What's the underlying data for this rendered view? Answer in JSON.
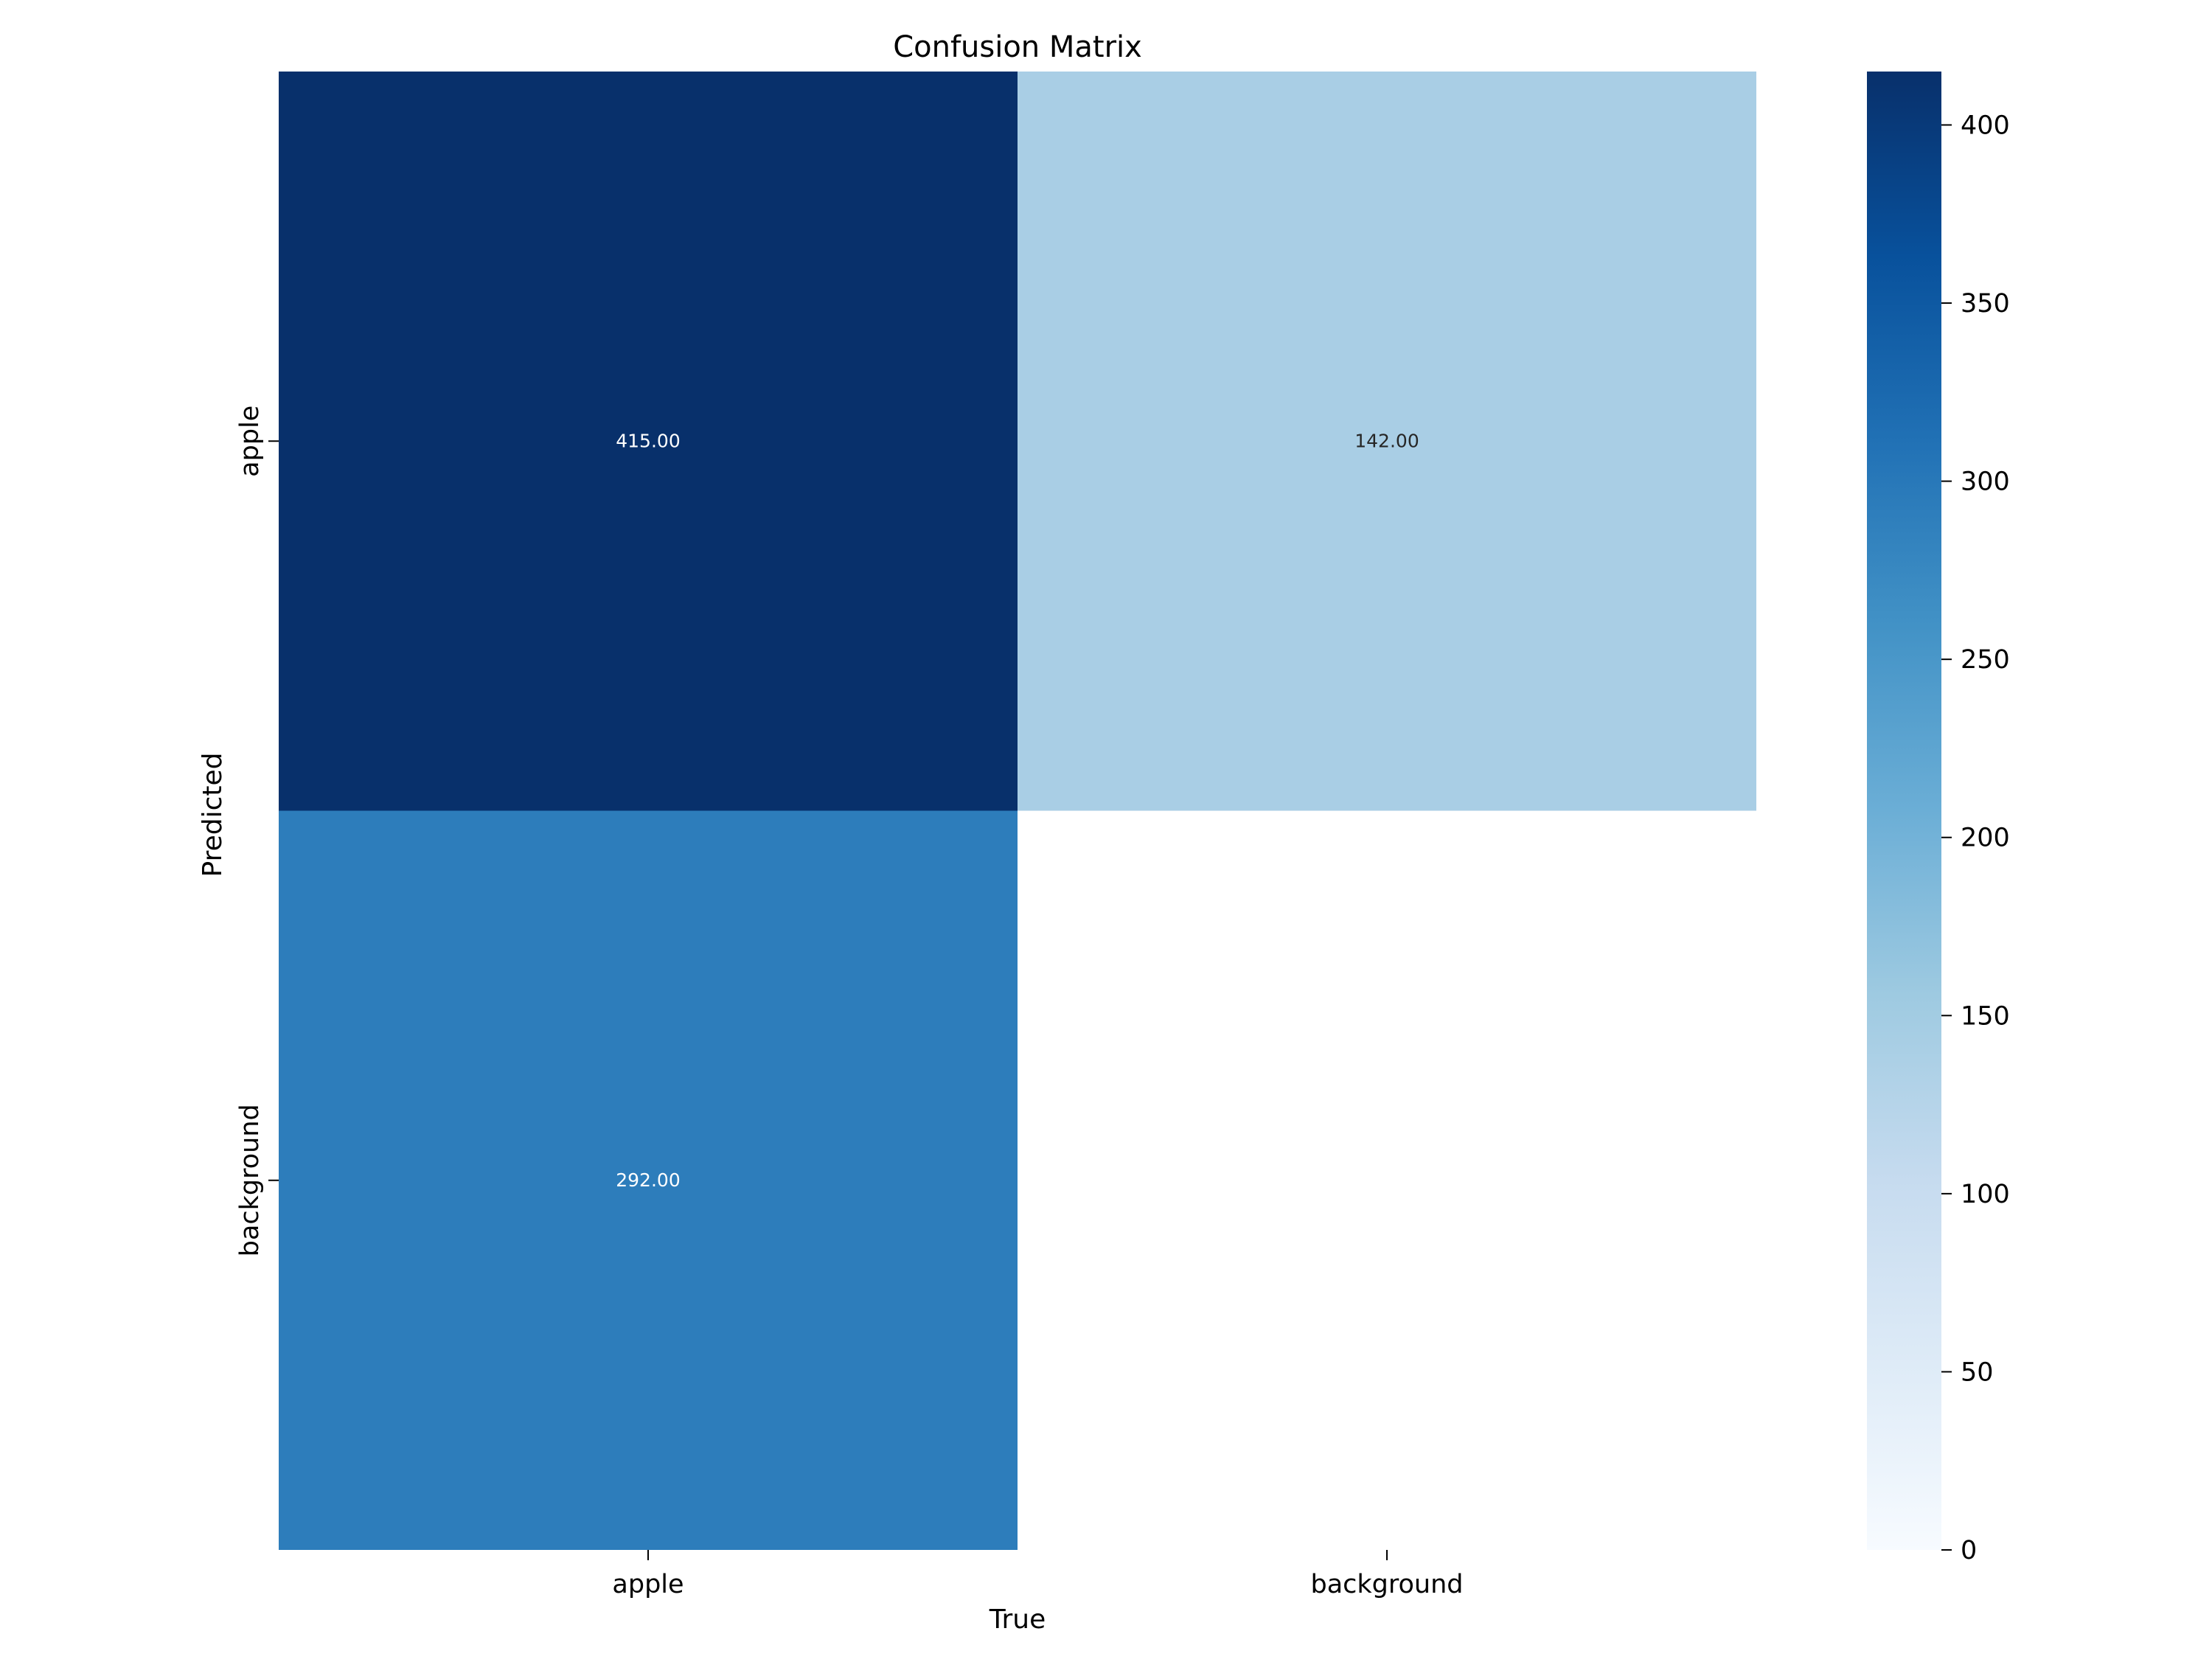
{
  "chart_data": {
    "type": "heatmap",
    "title": "Confusion Matrix",
    "xlabel": "True",
    "ylabel": "Predicted",
    "x_categories": [
      "apple",
      "background"
    ],
    "y_categories": [
      "apple",
      "background"
    ],
    "cells": [
      {
        "row": 0,
        "col": 0,
        "value": 415,
        "label": "415.00"
      },
      {
        "row": 0,
        "col": 1,
        "value": 142,
        "label": "142.00"
      },
      {
        "row": 1,
        "col": 0,
        "value": 292,
        "label": "292.00"
      },
      {
        "row": 1,
        "col": 1,
        "value": null,
        "label": ""
      }
    ],
    "colormap": "Blues",
    "colorbar": {
      "min": 0,
      "max": 415,
      "ticks": [
        0,
        50,
        100,
        150,
        200,
        250,
        300,
        350,
        400
      ]
    }
  }
}
